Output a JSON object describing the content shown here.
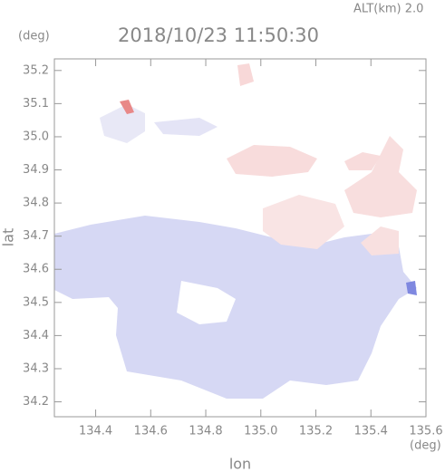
{
  "chart_data": {
    "type": "map",
    "title": "2018/10/23 11:50:30",
    "subtitle": "ALT(km) 2.0",
    "y_unit": "(deg)",
    "x_unit": "(deg)",
    "xlabel": "lon",
    "ylabel": "lat",
    "xlim": [
      134.25,
      135.6
    ],
    "ylim": [
      34.155,
      35.235
    ],
    "xticks": [
      134.4,
      134.6,
      134.8,
      {
        "value": 135,
        "label": "135.0"
      },
      135.2,
      135.4,
      135.6
    ],
    "yticks": [
      34.2,
      34.3,
      34.4,
      34.5,
      34.6,
      34.7,
      34.8,
      34.9,
      {
        "value": 35,
        "label": "35.0"
      },
      35.1,
      35.2
    ]
  }
}
